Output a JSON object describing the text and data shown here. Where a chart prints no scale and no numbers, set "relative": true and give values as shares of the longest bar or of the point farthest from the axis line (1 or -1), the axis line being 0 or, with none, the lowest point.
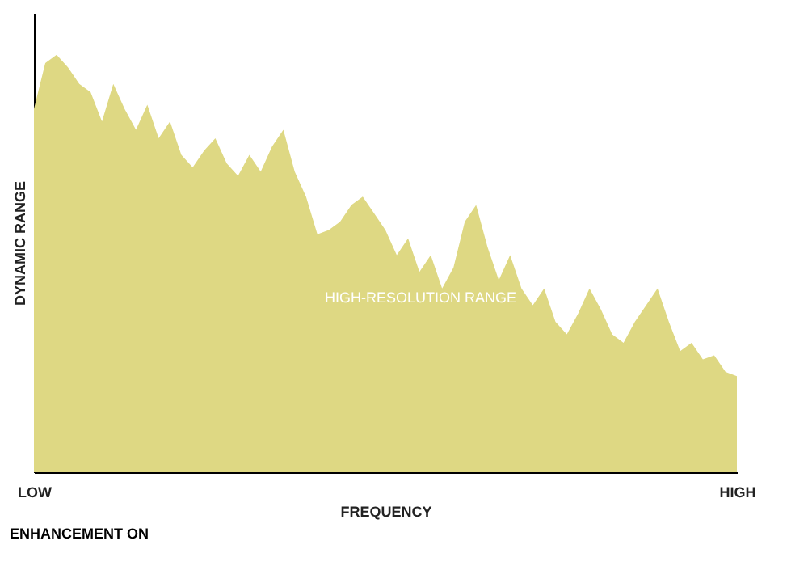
{
  "chart_data": {
    "type": "area",
    "relative": true,
    "xlabel": "FREQUENCY",
    "ylabel": "DYNAMIC RANGE",
    "categories": [
      "LOW",
      null,
      null,
      null,
      null,
      null,
      null,
      null,
      null,
      null,
      null,
      null,
      null,
      null,
      null,
      null,
      null,
      null,
      null,
      null,
      null,
      null,
      null,
      null,
      null,
      null,
      null,
      null,
      null,
      null,
      null,
      null,
      null,
      null,
      null,
      null,
      null,
      null,
      null,
      null,
      null,
      null,
      null,
      null,
      null,
      null,
      null,
      null,
      null,
      null,
      null,
      null,
      null,
      null,
      null,
      null,
      null,
      null,
      null,
      null,
      null,
      null,
      "HIGH"
    ],
    "series": [
      {
        "color": "#ded883",
        "values": [
          0.87,
          0.98,
          1,
          0.97,
          0.93,
          0.91,
          0.84,
          0.93,
          0.87,
          0.82,
          0.88,
          0.8,
          0.84,
          0.76,
          0.73,
          0.77,
          0.8,
          0.74,
          0.71,
          0.76,
          0.72,
          0.78,
          0.82,
          0.72,
          0.66,
          0.57,
          0.58,
          0.6,
          0.64,
          0.66,
          0.62,
          0.58,
          0.52,
          0.56,
          0.48,
          0.52,
          0.44,
          0.49,
          0.6,
          0.64,
          0.54,
          0.46,
          0.52,
          0.44,
          0.4,
          0.44,
          0.36,
          0.33,
          0.38,
          0.44,
          0.39,
          0.33,
          0.31,
          0.36,
          0.4,
          0.44,
          0.36,
          0.29,
          0.31,
          0.27,
          0.28,
          0.24,
          0.23
        ]
      }
    ],
    "annotations": [
      "HIGH-RESOLUTION RANGE",
      "ENHANCEMENT ON"
    ],
    "grid": false,
    "legend": false
  }
}
